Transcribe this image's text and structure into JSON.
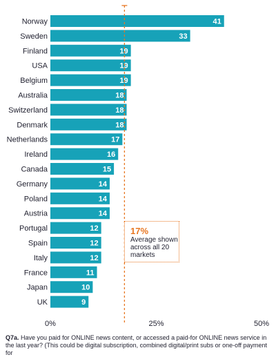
{
  "chart_data": {
    "type": "bar",
    "orientation": "horizontal",
    "categories": [
      "Norway",
      "Sweden",
      "Finland",
      "USA",
      "Belgium",
      "Australia",
      "Switzerland",
      "Denmark",
      "Netherlands",
      "Ireland",
      "Canada",
      "Germany",
      "Poland",
      "Austria",
      "Portugal",
      "Spain",
      "Italy",
      "France",
      "Japan",
      "UK"
    ],
    "values": [
      41,
      33,
      19,
      19,
      19,
      18,
      18,
      18,
      17,
      16,
      15,
      14,
      14,
      14,
      12,
      12,
      12,
      11,
      10,
      9
    ],
    "xlim": [
      0,
      50
    ],
    "xticks": [
      "0%",
      "25%",
      "50%"
    ],
    "bar_color": "#17a2b8",
    "average": {
      "value": 17,
      "value_label": "17%",
      "text": "Average shown across all 20 markets",
      "line_color": "#e87722"
    }
  },
  "footnote": {
    "id": "Q7a.",
    "text": "Have you paid for ONLINE news content, or accessed a paid-for ONLINE news service in the last year? (This could be digital subscription, combined digital/print subs or one-off payment for"
  }
}
